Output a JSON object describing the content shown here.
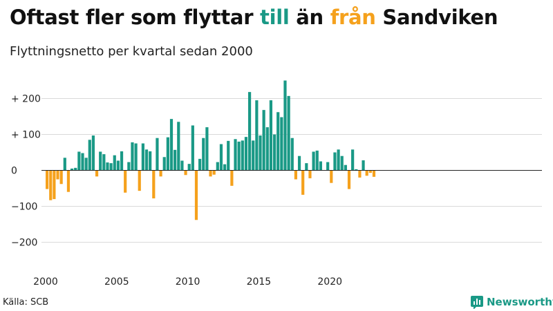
{
  "title": {
    "part1": "Oftast fler som flyttar ",
    "part_in": "till",
    "part2": " än ",
    "part_out": "från",
    "part3": " Sandviken"
  },
  "subtitle": "Flyttningsnetto per kvartal sedan 2000",
  "source": "Källa: SCB",
  "brand": "Newsworthy",
  "colors": {
    "positive": "#1a9986",
    "negative": "#f5a11c",
    "grid": "#d9d9d9",
    "axis": "#222222"
  },
  "chart_data": {
    "type": "bar",
    "title": "Oftast fler som flyttar till än från Sandviken",
    "subtitle": "Flyttningsnetto per kvartal sedan 2000",
    "x_start": "2000 Q1",
    "x_ticks": [
      "2000",
      "2005",
      "2010",
      "2015",
      "2020"
    ],
    "y_ticks": [
      {
        "value": 200,
        "label": "+ 200"
      },
      {
        "value": 100,
        "label": "+ 100"
      },
      {
        "value": 0,
        "label": "0"
      },
      {
        "value": -100,
        "label": "−100"
      },
      {
        "value": -200,
        "label": "−200"
      }
    ],
    "ylim": [
      -255,
      255
    ],
    "grid": true,
    "values": [
      -52,
      -83,
      -80,
      -25,
      -38,
      35,
      -60,
      5,
      7,
      52,
      48,
      35,
      85,
      97,
      -17,
      52,
      45,
      22,
      20,
      42,
      27,
      53,
      -62,
      23,
      78,
      75,
      -57,
      75,
      58,
      53,
      -78,
      90,
      -17,
      37,
      92,
      143,
      57,
      135,
      27,
      -13,
      18,
      125,
      -138,
      32,
      90,
      120,
      -17,
      -12,
      23,
      73,
      17,
      82,
      -43,
      87,
      80,
      83,
      93,
      218,
      83,
      195,
      97,
      168,
      120,
      195,
      100,
      162,
      148,
      250,
      207,
      90,
      -25,
      40,
      -68,
      20,
      -22,
      52,
      55,
      25,
      0,
      23,
      -35,
      50,
      58,
      40,
      15,
      -52,
      58,
      3,
      -20,
      28,
      -15,
      -7,
      -18
    ]
  }
}
